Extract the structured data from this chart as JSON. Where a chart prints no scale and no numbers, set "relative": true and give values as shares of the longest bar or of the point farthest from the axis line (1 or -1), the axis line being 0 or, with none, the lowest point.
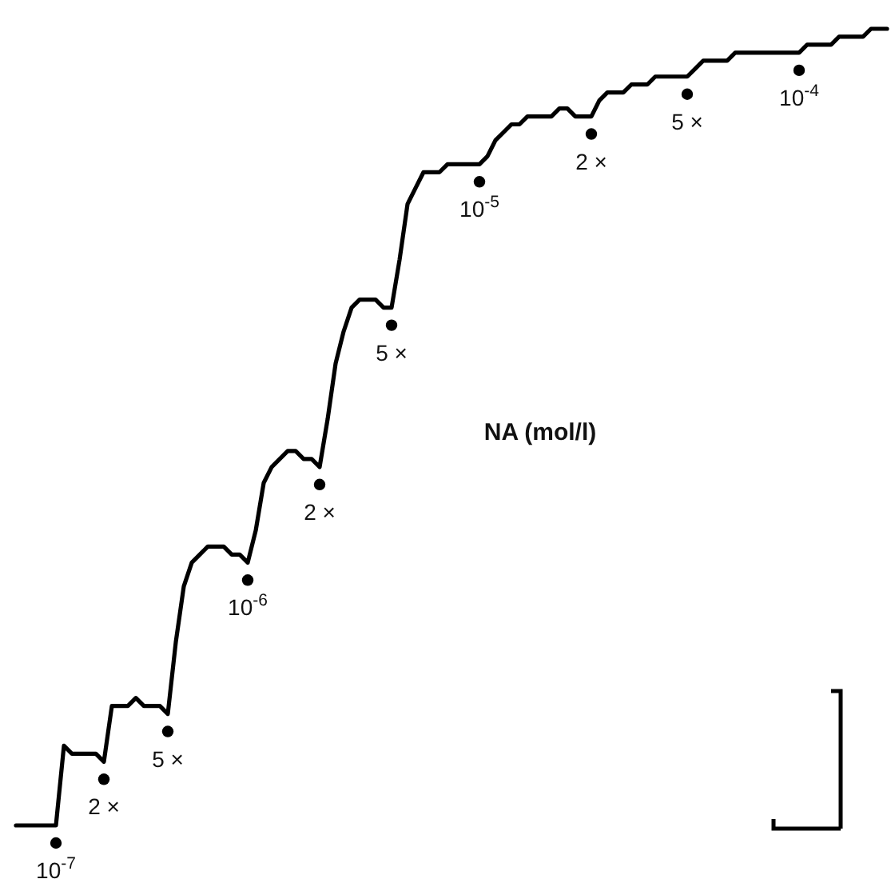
{
  "chart_data": {
    "type": "line",
    "relative": true,
    "title": "NA (mol/l)",
    "color": "#000000",
    "line_style": "solid",
    "categories": [
      null,
      null,
      null,
      null,
      null,
      "10$^{-7}$",
      null,
      null,
      null,
      null,
      null,
      "2 ×",
      null,
      null,
      null,
      null,
      null,
      null,
      null,
      "5 ×",
      null,
      null,
      null,
      null,
      null,
      null,
      null,
      null,
      null,
      "10$^{-6}$",
      null,
      null,
      null,
      null,
      null,
      null,
      null,
      null,
      "2 ×",
      null,
      null,
      null,
      null,
      null,
      null,
      null,
      null,
      "5 ×",
      null,
      null,
      null,
      null,
      null,
      null,
      null,
      null,
      null,
      null,
      "10$^{-5}$",
      null,
      null,
      null,
      null,
      null,
      null,
      null,
      null,
      null,
      null,
      null,
      null,
      null,
      "2 ×",
      null,
      null,
      null,
      null,
      null,
      null,
      null,
      null,
      null,
      null,
      null,
      "5 ×",
      null,
      null,
      null,
      null,
      null,
      null,
      null,
      null,
      null,
      null,
      null,
      null,
      null,
      "10$^{-4}$",
      null,
      null,
      null,
      null,
      null,
      null,
      null,
      null,
      null,
      null,
      null
    ],
    "values": [
      0,
      0,
      0,
      0,
      0,
      0,
      0.1,
      0.09,
      0.09,
      0.09,
      0.09,
      0.08,
      0.15,
      0.15,
      0.15,
      0.16,
      0.15,
      0.15,
      0.15,
      0.14,
      0.23,
      0.3,
      0.33,
      0.34,
      0.35,
      0.35,
      0.35,
      0.34,
      0.34,
      0.33,
      0.37,
      0.43,
      0.45,
      0.46,
      0.47,
      0.47,
      0.46,
      0.46,
      0.45,
      0.51,
      0.58,
      0.62,
      0.65,
      0.66,
      0.66,
      0.66,
      0.65,
      0.65,
      0.71,
      0.78,
      0.8,
      0.82,
      0.82,
      0.82,
      0.83,
      0.83,
      0.83,
      0.83,
      0.83,
      0.84,
      0.86,
      0.87,
      0.88,
      0.88,
      0.89,
      0.89,
      0.89,
      0.89,
      0.9,
      0.9,
      0.89,
      0.89,
      0.89,
      0.91,
      0.92,
      0.92,
      0.92,
      0.93,
      0.93,
      0.93,
      0.94,
      0.94,
      0.94,
      0.94,
      0.94,
      0.95,
      0.96,
      0.96,
      0.96,
      0.96,
      0.97,
      0.97,
      0.97,
      0.97,
      0.97,
      0.97,
      0.97,
      0.97,
      0.97,
      0.98,
      0.98,
      0.98,
      0.98,
      0.99,
      0.99,
      0.99,
      0.99,
      1.0,
      1.0,
      1
    ]
  }
}
